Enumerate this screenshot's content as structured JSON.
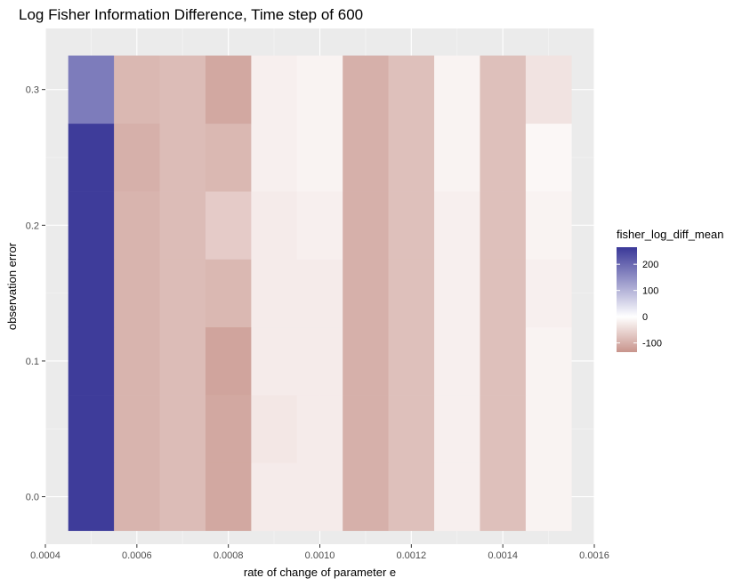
{
  "chart_data": {
    "type": "heatmap",
    "title": "Log Fisher Information Difference, Time step of 600",
    "xlabel": "rate of change of parameter e",
    "ylabel": "observation error",
    "xlim": [
      0.0004,
      0.0016
    ],
    "ylim": [
      -0.035,
      0.345
    ],
    "x_ticks": [
      0.0004,
      0.0006,
      0.0008,
      0.001,
      0.0012,
      0.0014,
      0.0016
    ],
    "x_tick_labels": [
      "0.0004",
      "0.0006",
      "0.0008",
      "0.0010",
      "0.0012",
      "0.0014",
      "0.0016"
    ],
    "y_ticks": [
      0.0,
      0.1,
      0.2,
      0.3
    ],
    "y_tick_labels": [
      "0.0",
      "0.1",
      "0.2",
      "0.3"
    ],
    "x": [
      0.0005,
      0.0006,
      0.0007,
      0.0008,
      0.0009,
      0.001,
      0.0011,
      0.0012,
      0.0013,
      0.0014,
      0.0015
    ],
    "y": [
      0.0,
      0.05,
      0.1,
      0.15,
      0.2,
      0.25,
      0.3
    ],
    "values": [
      [
        260,
        -95,
        -85,
        -110,
        -25,
        -25,
        -100,
        -80,
        -20,
        -80,
        -15
      ],
      [
        260,
        -95,
        -85,
        -110,
        -30,
        -25,
        -100,
        -80,
        -20,
        -80,
        -15
      ],
      [
        260,
        -95,
        -85,
        -115,
        -25,
        -25,
        -100,
        -80,
        -20,
        -80,
        -15
      ],
      [
        260,
        -95,
        -85,
        -90,
        -25,
        -25,
        -100,
        -80,
        -20,
        -80,
        -20
      ],
      [
        260,
        -95,
        -85,
        -65,
        -25,
        -20,
        -100,
        -80,
        -20,
        -80,
        -15
      ],
      [
        260,
        -100,
        -85,
        -90,
        -20,
        -15,
        -100,
        -80,
        -15,
        -80,
        -10
      ],
      [
        175,
        -90,
        -85,
        -110,
        -20,
        -15,
        -100,
        -80,
        -15,
        -80,
        -35
      ]
    ],
    "grid": true,
    "legend": {
      "position": "right",
      "title": "fisher_log_diff_mean",
      "ticks": [
        200,
        100,
        0,
        -100
      ],
      "tick_labels": [
        "200",
        "100",
        "0",
        "-100"
      ],
      "min": -135,
      "max": 265,
      "low_color": "#c8948c",
      "mid_color": "#ffffff",
      "high_color": "#3a3898"
    }
  }
}
